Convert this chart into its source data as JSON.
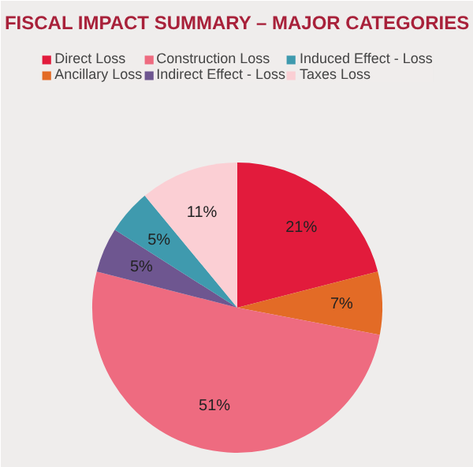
{
  "chart_data": {
    "type": "pie",
    "title": "FISCAL IMPACT SUMMARY – MAJOR CATEGORIES",
    "categories": [
      "Direct Loss",
      "Ancillary Loss",
      "Construction Loss",
      "Indirect Effect - Loss",
      "Induced Effect - Loss",
      "Taxes Loss"
    ],
    "values": [
      21,
      7,
      51,
      5,
      5,
      11
    ],
    "colors": [
      "#e21b3c",
      "#e36b26",
      "#ee6b80",
      "#6e5690",
      "#3f9aae",
      "#fbcfd4"
    ],
    "value_labels": [
      "21%",
      "7%",
      "51%",
      "5%",
      "5%",
      "11%"
    ],
    "legend": "top"
  }
}
